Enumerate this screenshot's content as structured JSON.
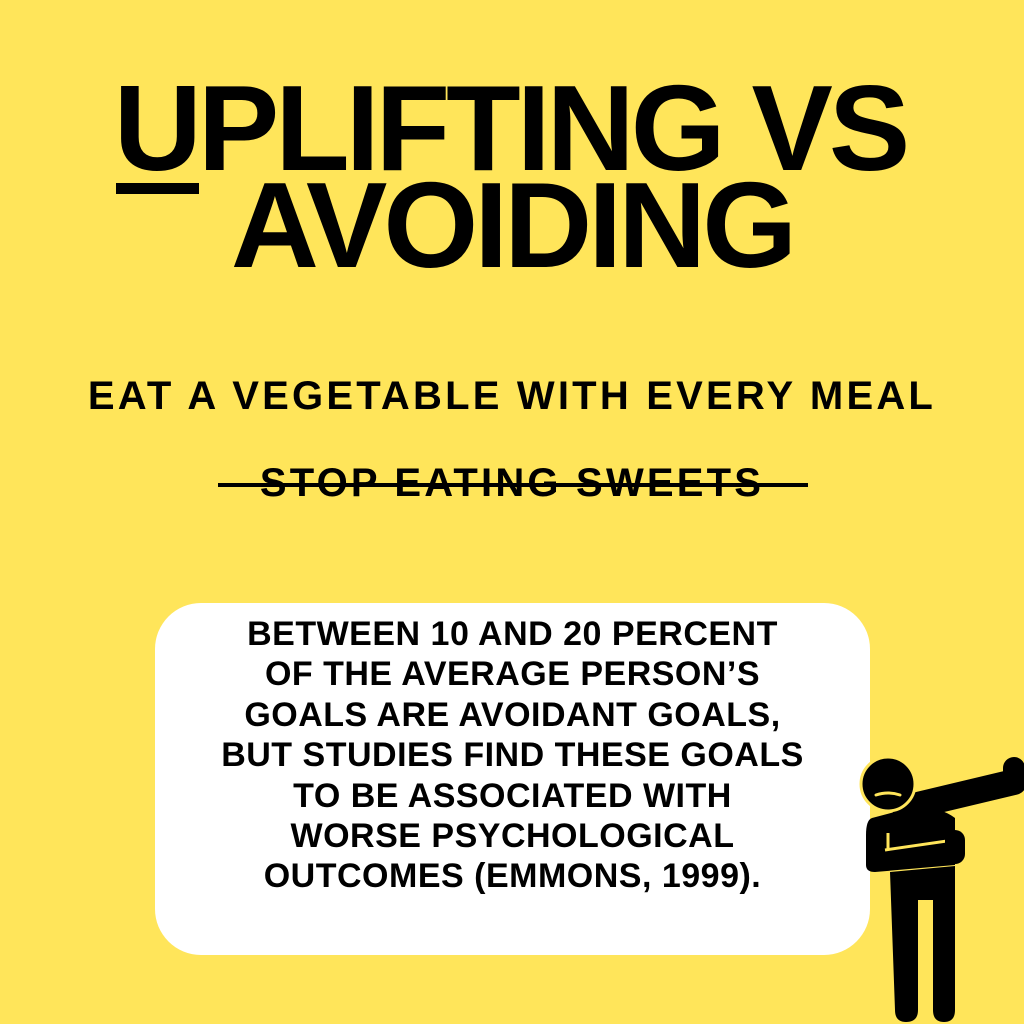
{
  "title": {
    "line1": "UPLIFTING VS",
    "line2": "AVOIDING"
  },
  "uplifting_goal": "EAT A VEGETABLE WITH EVERY MEAL",
  "avoiding_goal": "STOP EATING SWEETS",
  "fact_box": {
    "lines": [
      "BETWEEN 10 AND 20 PERCENT",
      "OF THE AVERAGE PERSON’S",
      "GOALS ARE AVOIDANT GOALS,",
      "BUT STUDIES FIND THESE GOALS",
      "TO BE ASSOCIATED WITH",
      "WORSE PSYCHOLOGICAL",
      "OUTCOMES (EMMONS, 1999)."
    ]
  },
  "colors": {
    "background": "#FFE55A",
    "text": "#000000",
    "box": "#FFFFFF"
  },
  "icons": {
    "figure": "dabbing-person-icon"
  }
}
